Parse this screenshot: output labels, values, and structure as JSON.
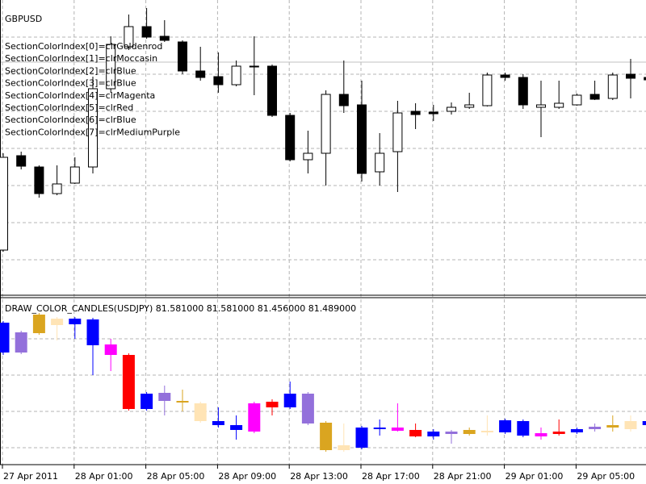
{
  "chart_data": [
    {
      "type": "candlestick",
      "title": "GBPUSD",
      "annotations": [
        "SectionColorIndex[0]=clrGoldenrod",
        "SectionColorIndex[1]=clrMoccasin",
        "SectionColorIndex[2]=clrBlue",
        "SectionColorIndex[3]=clrBlue",
        "SectionColorIndex[4]=clrMagenta",
        "SectionColorIndex[5]=clrRed",
        "SectionColorIndex[6]=clrBlue",
        "SectionColorIndex[7]=clrMediumPurple"
      ],
      "ylim": [
        0,
        365
      ],
      "up_color": "#ffffff",
      "down_color": "#000000",
      "edge_color": "#000000",
      "open": [
        55,
        172,
        158,
        125,
        138,
        158,
        255,
        307,
        332,
        320,
        313,
        277,
        270,
        260,
        282,
        283,
        222,
        167,
        175,
        248,
        235,
        152,
        177,
        227,
        226,
        227,
        232,
        234,
        272,
        269,
        232,
        232,
        235,
        248,
        243,
        273,
        269
      ],
      "high": [
        175,
        177,
        160,
        160,
        170,
        270,
        320,
        347,
        355,
        340,
        315,
        307,
        300,
        290,
        320,
        285,
        225,
        203,
        253,
        290,
        265,
        200,
        240,
        237,
        235,
        238,
        250,
        275,
        275,
        273,
        265,
        265,
        249,
        265,
        275,
        292,
        285
      ],
      "low": [
        53,
        155,
        120,
        123,
        137,
        150,
        250,
        303,
        317,
        313,
        273,
        265,
        250,
        258,
        247,
        220,
        165,
        150,
        135,
        225,
        140,
        135,
        127,
        205,
        215,
        223,
        230,
        233,
        265,
        230,
        195,
        230,
        234,
        241,
        241,
        243,
        265
      ],
      "close": [
        170,
        159,
        125,
        137,
        158,
        255,
        310,
        332,
        319,
        315,
        277,
        269,
        260,
        283,
        283,
        222,
        167,
        175,
        248,
        234,
        150,
        175,
        225,
        223,
        224,
        232,
        235,
        272,
        269,
        235,
        235,
        237,
        247,
        242,
        272,
        268,
        266
      ]
    },
    {
      "type": "color_candlestick",
      "title": "DRAW_COLOR_CANDLES(USDJPY) 81.581000 81.581000 81.456000 81.489000",
      "categories": [
        "27 Apr 2011",
        null,
        null,
        null,
        "28 Apr 01:00",
        null,
        null,
        null,
        "28 Apr 05:00",
        null,
        null,
        null,
        "28 Apr 09:00",
        null,
        null,
        null,
        "28 Apr 13:00",
        null,
        null,
        null,
        "28 Apr 17:00",
        null,
        null,
        null,
        "28 Apr 21:00",
        null,
        null,
        null,
        "29 Apr 01:00",
        null,
        null,
        null,
        "29 Apr 05:00",
        null,
        null,
        null,
        null
      ],
      "ylim": [
        0,
        205
      ],
      "colors": [
        "#0000ff",
        "#9370db",
        "#daa520",
        "#ffe4b5",
        "#0000ff",
        "#0000ff",
        "#ff00ff",
        "#ff0000",
        "#0000ff",
        "#9370db",
        "#daa520",
        "#ffe4b5",
        "#0000ff",
        "#0000ff",
        "#ff00ff",
        "#ff0000",
        "#0000ff",
        "#9370db",
        "#daa520",
        "#ffe4b5",
        "#0000ff",
        "#0000ff",
        "#ff00ff",
        "#ff0000",
        "#0000ff",
        "#9370db",
        "#daa520",
        "#ffe4b5",
        "#0000ff",
        "#0000ff",
        "#ff00ff",
        "#ff0000",
        "#0000ff",
        "#9370db",
        "#daa520",
        "#ffe4b5",
        "#0000ff"
      ],
      "open": [
        175,
        163,
        185,
        180,
        180,
        179,
        148,
        135,
        87,
        88,
        78,
        75,
        53,
        48,
        75,
        77,
        87,
        87,
        51,
        23,
        45,
        45,
        45,
        42,
        40,
        40,
        42,
        41,
        54,
        53,
        38,
        40,
        43,
        46,
        48,
        53,
        53
      ],
      "high": [
        177,
        165,
        187,
        182,
        182,
        181,
        155,
        137,
        89,
        97,
        92,
        77,
        70,
        60,
        77,
        80,
        102,
        89,
        53,
        50,
        47,
        55,
        75,
        50,
        43,
        42,
        45,
        60,
        56,
        55,
        45,
        55,
        45,
        50,
        60,
        60,
        55
      ],
      "low": [
        135,
        136,
        160,
        153,
        155,
        110,
        115,
        66,
        66,
        60,
        65,
        51,
        45,
        30,
        38,
        60,
        68,
        48,
        15,
        15,
        18,
        35,
        40,
        33,
        30,
        25,
        35,
        35,
        37,
        33,
        30,
        35,
        37,
        40,
        40,
        40,
        46
      ],
      "close": [
        138,
        138,
        162,
        172,
        173,
        147,
        135,
        68,
        68,
        78,
        76,
        53,
        48,
        42,
        40,
        70,
        70,
        50,
        17,
        17,
        20,
        44,
        41,
        34,
        34,
        37,
        37,
        39,
        39,
        35,
        34,
        37,
        39,
        43,
        45,
        43,
        48
      ]
    }
  ]
}
